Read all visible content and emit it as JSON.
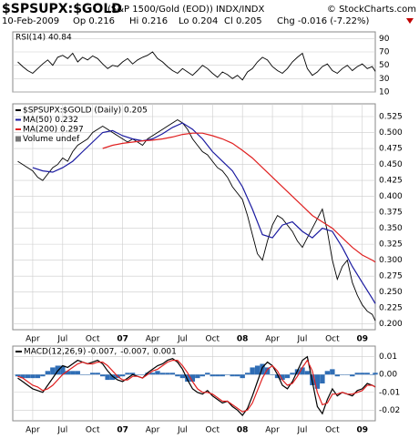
{
  "header": {
    "symbol": "$SPSUPX:$GOLD",
    "description": "(S&P 1500/Gold (EOD)) INDX/INDX",
    "credit": "© StockCharts.com",
    "date": "10-Feb-2009",
    "quote": [
      "Op 0.216",
      "Hi 0.216",
      "Lo 0.204",
      "Cl 0.205",
      "Chg -0.016 (-7.22%)"
    ]
  },
  "chart_data": [
    {
      "type": "line",
      "title": "RSI(14) 40.84",
      "x": [
        1.5,
        2,
        2.5,
        3,
        3.5,
        4,
        4.5,
        5,
        5.5,
        6,
        6.5,
        7,
        7.5,
        8,
        8.5,
        9,
        9.5,
        10,
        10.5,
        11,
        11.5,
        12,
        12.5,
        13,
        13.5,
        14,
        14.5,
        15,
        15.5,
        16,
        16.5,
        17,
        17.5,
        18,
        18.5,
        19,
        19.5,
        20,
        20.5,
        21,
        21.5,
        22,
        22.5,
        23,
        23.5,
        24,
        24.5,
        25,
        25.5,
        26,
        26.5,
        27,
        27.5,
        28,
        28.5,
        29,
        29.5,
        30,
        30.5,
        31,
        31.5,
        32,
        32.5,
        33,
        33.5,
        34,
        34.5,
        35,
        35.5,
        36,
        36.5,
        37,
        37.3
      ],
      "xlim": [
        1,
        37.3
      ],
      "ylim": [
        10,
        100
      ],
      "yticks": [
        90,
        70,
        50,
        30,
        10
      ],
      "grid": true,
      "series": [
        {
          "name": "RSI(14)",
          "color": "#000000",
          "values": [
            55,
            48,
            42,
            38,
            45,
            52,
            58,
            50,
            62,
            65,
            60,
            68,
            55,
            62,
            58,
            64,
            60,
            52,
            45,
            50,
            48,
            55,
            60,
            52,
            58,
            62,
            65,
            70,
            60,
            55,
            48,
            42,
            38,
            45,
            40,
            35,
            42,
            50,
            45,
            38,
            32,
            40,
            36,
            30,
            35,
            28,
            40,
            45,
            55,
            62,
            58,
            48,
            42,
            38,
            45,
            55,
            62,
            68,
            45,
            35,
            40,
            48,
            52,
            42,
            38,
            45,
            50,
            42,
            48,
            52,
            45,
            48,
            40.84
          ]
        }
      ]
    },
    {
      "type": "line",
      "legend_extra": "Volume undef",
      "x": [
        1.5,
        2,
        2.5,
        3,
        3.5,
        4,
        4.5,
        5,
        5.5,
        6,
        6.5,
        7,
        7.5,
        8,
        8.5,
        9,
        9.5,
        10,
        10.5,
        11,
        11.5,
        12,
        12.5,
        13,
        13.5,
        14,
        14.5,
        15,
        15.5,
        16,
        16.5,
        17,
        17.5,
        18,
        18.5,
        19,
        19.5,
        20,
        20.5,
        21,
        21.5,
        22,
        22.5,
        23,
        23.5,
        24,
        24.5,
        25,
        25.5,
        26,
        26.5,
        27,
        27.5,
        28,
        28.5,
        29,
        29.5,
        30,
        30.5,
        31,
        31.5,
        32,
        32.5,
        33,
        33.5,
        34,
        34.5,
        35,
        35.5,
        36,
        36.5,
        37,
        37.3
      ],
      "xlim": [
        1,
        37.3
      ],
      "ylim": [
        0.191,
        0.545
      ],
      "xticks": [
        {
          "value": 3,
          "label": "Apr"
        },
        {
          "value": 6,
          "label": "Jul"
        },
        {
          "value": 9,
          "label": "Oct"
        },
        {
          "value": 12,
          "label": "07"
        },
        {
          "value": 15,
          "label": "Apr"
        },
        {
          "value": 18,
          "label": "Jul"
        },
        {
          "value": 21,
          "label": "Oct"
        },
        {
          "value": 24,
          "label": "08"
        },
        {
          "value": 27,
          "label": "Apr"
        },
        {
          "value": 30,
          "label": "Jul"
        },
        {
          "value": 33,
          "label": "Oct"
        },
        {
          "value": 36,
          "label": "09"
        }
      ],
      "yticks": [
        0.525,
        {
          "value": 0.5,
          "label": "0.500"
        },
        0.475,
        {
          "value": 0.45,
          "label": "0.450"
        },
        0.425,
        {
          "value": 0.4,
          "label": "0.400"
        },
        0.375,
        {
          "value": 0.35,
          "label": "0.350"
        },
        0.325,
        {
          "value": 0.3,
          "label": "0.300"
        },
        0.275,
        {
          "value": 0.25,
          "label": "0.250"
        },
        0.225,
        {
          "value": 0.2,
          "label": "0.200"
        }
      ],
      "grid": true,
      "series": [
        {
          "name": "$SPSUPX:$GOLD (Daily) 0.205",
          "color": "#000000",
          "values": [
            0.455,
            0.45,
            0.445,
            0.44,
            0.43,
            0.425,
            0.435,
            0.445,
            0.45,
            0.46,
            0.455,
            0.47,
            0.48,
            0.485,
            0.49,
            0.5,
            0.505,
            0.51,
            0.505,
            0.5,
            0.495,
            0.49,
            0.485,
            0.49,
            0.485,
            0.48,
            0.49,
            0.495,
            0.5,
            0.505,
            0.51,
            0.515,
            0.52,
            0.515,
            0.505,
            0.49,
            0.48,
            0.47,
            0.465,
            0.455,
            0.445,
            0.44,
            0.43,
            0.415,
            0.405,
            0.395,
            0.37,
            0.34,
            0.31,
            0.3,
            0.33,
            0.355,
            0.37,
            0.365,
            0.355,
            0.345,
            0.33,
            0.32,
            0.335,
            0.35,
            0.365,
            0.38,
            0.345,
            0.3,
            0.27,
            0.29,
            0.3,
            0.265,
            0.245,
            0.23,
            0.22,
            0.215,
            0.205
          ]
        },
        {
          "name": "MA(50) 0.232",
          "color": "#1a1aa0",
          "x": [
            3,
            4,
            5,
            6,
            7,
            8,
            9,
            10,
            11,
            12,
            13,
            14,
            15,
            16,
            17,
            18,
            19,
            20,
            21,
            22,
            23,
            24,
            25,
            26,
            27,
            28,
            29,
            30,
            31,
            32,
            33,
            34,
            35,
            36,
            37,
            37.3
          ],
          "values": [
            0.445,
            0.44,
            0.438,
            0.445,
            0.455,
            0.47,
            0.485,
            0.5,
            0.503,
            0.495,
            0.49,
            0.487,
            0.49,
            0.498,
            0.508,
            0.515,
            0.505,
            0.49,
            0.47,
            0.455,
            0.44,
            0.415,
            0.38,
            0.34,
            0.335,
            0.355,
            0.36,
            0.345,
            0.335,
            0.35,
            0.345,
            0.32,
            0.29,
            0.265,
            0.24,
            0.232
          ]
        },
        {
          "name": "MA(200) 0.297",
          "color": "#e02020",
          "x": [
            10,
            11,
            12,
            13,
            14,
            15,
            16,
            17,
            18,
            19,
            20,
            21,
            22,
            23,
            24,
            25,
            26,
            27,
            28,
            29,
            30,
            31,
            32,
            33,
            34,
            35,
            36,
            37,
            37.3
          ],
          "values": [
            0.475,
            0.48,
            0.483,
            0.485,
            0.487,
            0.488,
            0.49,
            0.493,
            0.497,
            0.499,
            0.499,
            0.495,
            0.49,
            0.483,
            0.472,
            0.46,
            0.445,
            0.43,
            0.415,
            0.4,
            0.385,
            0.37,
            0.36,
            0.35,
            0.335,
            0.32,
            0.308,
            0.3,
            0.297
          ]
        }
      ]
    },
    {
      "type": "line",
      "title": "MACD(12,26,9)",
      "x": [
        1.5,
        2,
        2.5,
        3,
        3.5,
        4,
        4.5,
        5,
        5.5,
        6,
        6.5,
        7,
        7.5,
        8,
        8.5,
        9,
        9.5,
        10,
        10.5,
        11,
        11.5,
        12,
        12.5,
        13,
        13.5,
        14,
        14.5,
        15,
        15.5,
        16,
        16.5,
        17,
        17.5,
        18,
        18.5,
        19,
        19.5,
        20,
        20.5,
        21,
        21.5,
        22,
        22.5,
        23,
        23.5,
        24,
        24.5,
        25,
        25.5,
        26,
        26.5,
        27,
        27.5,
        28,
        28.5,
        29,
        29.5,
        30,
        30.5,
        31,
        31.5,
        32,
        32.5,
        33,
        33.5,
        34,
        34.5,
        35,
        35.5,
        36,
        36.5,
        37,
        37.3
      ],
      "xlim": [
        1,
        37.3
      ],
      "ylim": [
        -0.026,
        0.016
      ],
      "xticks": [
        {
          "value": 3,
          "label": "Apr"
        },
        {
          "value": 6,
          "label": "Jul"
        },
        {
          "value": 9,
          "label": "Oct"
        },
        {
          "value": 12,
          "label": "07"
        },
        {
          "value": 15,
          "label": "Apr"
        },
        {
          "value": 18,
          "label": "Jul"
        },
        {
          "value": 21,
          "label": "Oct"
        },
        {
          "value": 24,
          "label": "08"
        },
        {
          "value": 27,
          "label": "Apr"
        },
        {
          "value": 30,
          "label": "Jul"
        },
        {
          "value": 33,
          "label": "Oct"
        },
        {
          "value": 36,
          "label": "09"
        }
      ],
      "yticks": [
        0.01,
        {
          "value": 0,
          "label": "0.00"
        },
        -0.01,
        -0.02
      ],
      "grid": true,
      "series": [
        {
          "name": "0.001",
          "type": "bar",
          "color": "#2f6db5",
          "values": [
            -0.001,
            -0.002,
            -0.002,
            -0.002,
            -0.002,
            -0.001,
            0.002,
            0.004,
            0.005,
            0.005,
            0.002,
            0.002,
            0.002,
            0,
            0,
            0.001,
            0.001,
            -0.001,
            -0.003,
            -0.003,
            -0.002,
            -0.001,
            0.001,
            0.001,
            0,
            0,
            0.001,
            0.001,
            0.002,
            0.001,
            0.001,
            0.001,
            -0.001,
            -0.002,
            -0.004,
            -0.004,
            -0.002,
            -0.001,
            0.001,
            -0.001,
            -0.001,
            -0.001,
            0,
            -0.001,
            -0.001,
            -0.002,
            0.001,
            0.004,
            0.005,
            0.006,
            0.004,
            0,
            -0.002,
            -0.003,
            -0.002,
            0.001,
            0.003,
            0.004,
            0.002,
            -0.006,
            -0.008,
            -0.005,
            0.002,
            0.003,
            -0.001,
            0,
            0,
            -0.001,
            0.001,
            0.001,
            0.001,
            0,
            0.001
          ]
        },
        {
          "name": "-0.007,",
          "color": "#000000",
          "values": [
            -0.002,
            -0.004,
            -0.006,
            -0.008,
            -0.009,
            -0.01,
            -0.006,
            -0.002,
            0.002,
            0.005,
            0.004,
            0.006,
            0.008,
            0.007,
            0.006,
            0.007,
            0.008,
            0.006,
            0.002,
            -0.001,
            -0.003,
            -0.004,
            -0.002,
            0,
            -0.001,
            -0.002,
            0.001,
            0.003,
            0.005,
            0.006,
            0.008,
            0.009,
            0.007,
            0.003,
            -0.003,
            -0.008,
            -0.01,
            -0.011,
            -0.009,
            -0.012,
            -0.014,
            -0.016,
            -0.015,
            -0.018,
            -0.02,
            -0.023,
            -0.019,
            -0.012,
            -0.004,
            0.004,
            0.007,
            0.005,
            0,
            -0.006,
            -0.008,
            -0.004,
            0.002,
            0.008,
            0.01,
            -0.004,
            -0.018,
            -0.022,
            -0.014,
            -0.008,
            -0.012,
            -0.01,
            -0.011,
            -0.012,
            -0.009,
            -0.008,
            -0.005,
            -0.006,
            -0.007
          ]
        },
        {
          "name": "-0.007,",
          "color": "#e02020",
          "values": [
            -0.001,
            -0.002,
            -0.004,
            -0.006,
            -0.007,
            -0.009,
            -0.008,
            -0.006,
            -0.003,
            0,
            0.002,
            0.004,
            0.006,
            0.007,
            0.006,
            0.006,
            0.007,
            0.007,
            0.005,
            0.002,
            -0.001,
            -0.003,
            -0.003,
            -0.001,
            -0.001,
            -0.002,
            0,
            0.002,
            0.003,
            0.005,
            0.007,
            0.008,
            0.008,
            0.005,
            0.001,
            -0.004,
            -0.008,
            -0.01,
            -0.01,
            -0.011,
            -0.013,
            -0.015,
            -0.015,
            -0.017,
            -0.019,
            -0.021,
            -0.02,
            -0.016,
            -0.009,
            -0.002,
            0.003,
            0.005,
            0.002,
            -0.003,
            -0.006,
            -0.005,
            -0.001,
            0.004,
            0.008,
            0.002,
            -0.01,
            -0.017,
            -0.016,
            -0.011,
            -0.011,
            -0.01,
            -0.011,
            -0.011,
            -0.01,
            -0.009,
            -0.006,
            -0.006,
            -0.007
          ]
        }
      ]
    }
  ]
}
